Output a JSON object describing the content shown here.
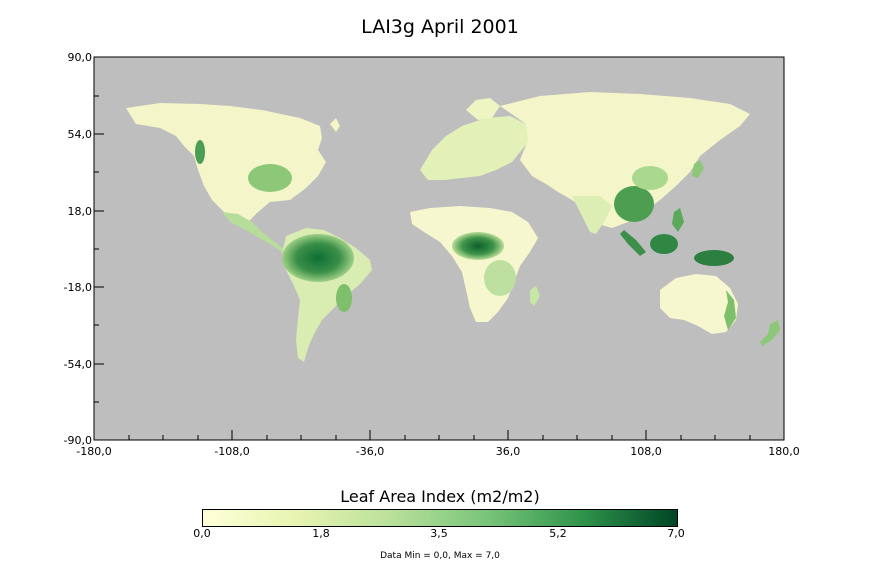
{
  "title": "LAI3g April 2001",
  "colors": {
    "ocean": "#bebebe",
    "land_low": "#fbfbcf",
    "land_mid": "#a9d88e",
    "land_high": "#006b30",
    "land_dark": "#004421"
  },
  "map": {
    "x_ticks": [
      "-180,0",
      "-108,0",
      "-36,0",
      "36,0",
      "108,0",
      "180,0"
    ],
    "y_ticks": [
      "90,0",
      "54,0",
      "18,0",
      "-18,0",
      "-54,0",
      "-90,0"
    ],
    "x_range": [
      -180,
      180
    ],
    "y_range": [
      -90,
      90
    ]
  },
  "colorbar": {
    "title": "Leaf Area Index (m2/m2)",
    "ticks": [
      "0,0",
      "1,8",
      "3,5",
      "5,2",
      "7,0"
    ],
    "range": [
      0,
      7
    ]
  },
  "stats": "Data Min = 0,0, Max = 7,0"
}
